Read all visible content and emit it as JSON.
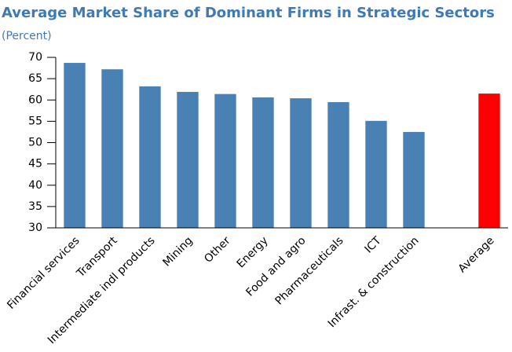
{
  "chart_data": {
    "type": "bar",
    "title": "Average Market Share of Dominant Firms in Strategic Sectors",
    "subtitle": "(Percent)",
    "categories": [
      "Financial services",
      "Transport",
      "Intermediate indl products",
      "Mining",
      "Other",
      "Energy",
      "Food and agro",
      "Pharmaceuticals",
      "ICT",
      "Infrast. & construction",
      null,
      "Average"
    ],
    "values": [
      68.7,
      67.2,
      63.2,
      61.9,
      61.4,
      60.6,
      60.4,
      59.5,
      55.1,
      52.5,
      null,
      61.5
    ],
    "colors": [
      "#4a81b4",
      "#4a81b4",
      "#4a81b4",
      "#4a81b4",
      "#4a81b4",
      "#4a81b4",
      "#4a81b4",
      "#4a81b4",
      "#4a81b4",
      "#4a81b4",
      null,
      "#ff0000"
    ],
    "ylim": [
      30,
      70
    ],
    "yticks": [
      30,
      35,
      40,
      45,
      50,
      55,
      60,
      65,
      70
    ],
    "grid": false
  }
}
